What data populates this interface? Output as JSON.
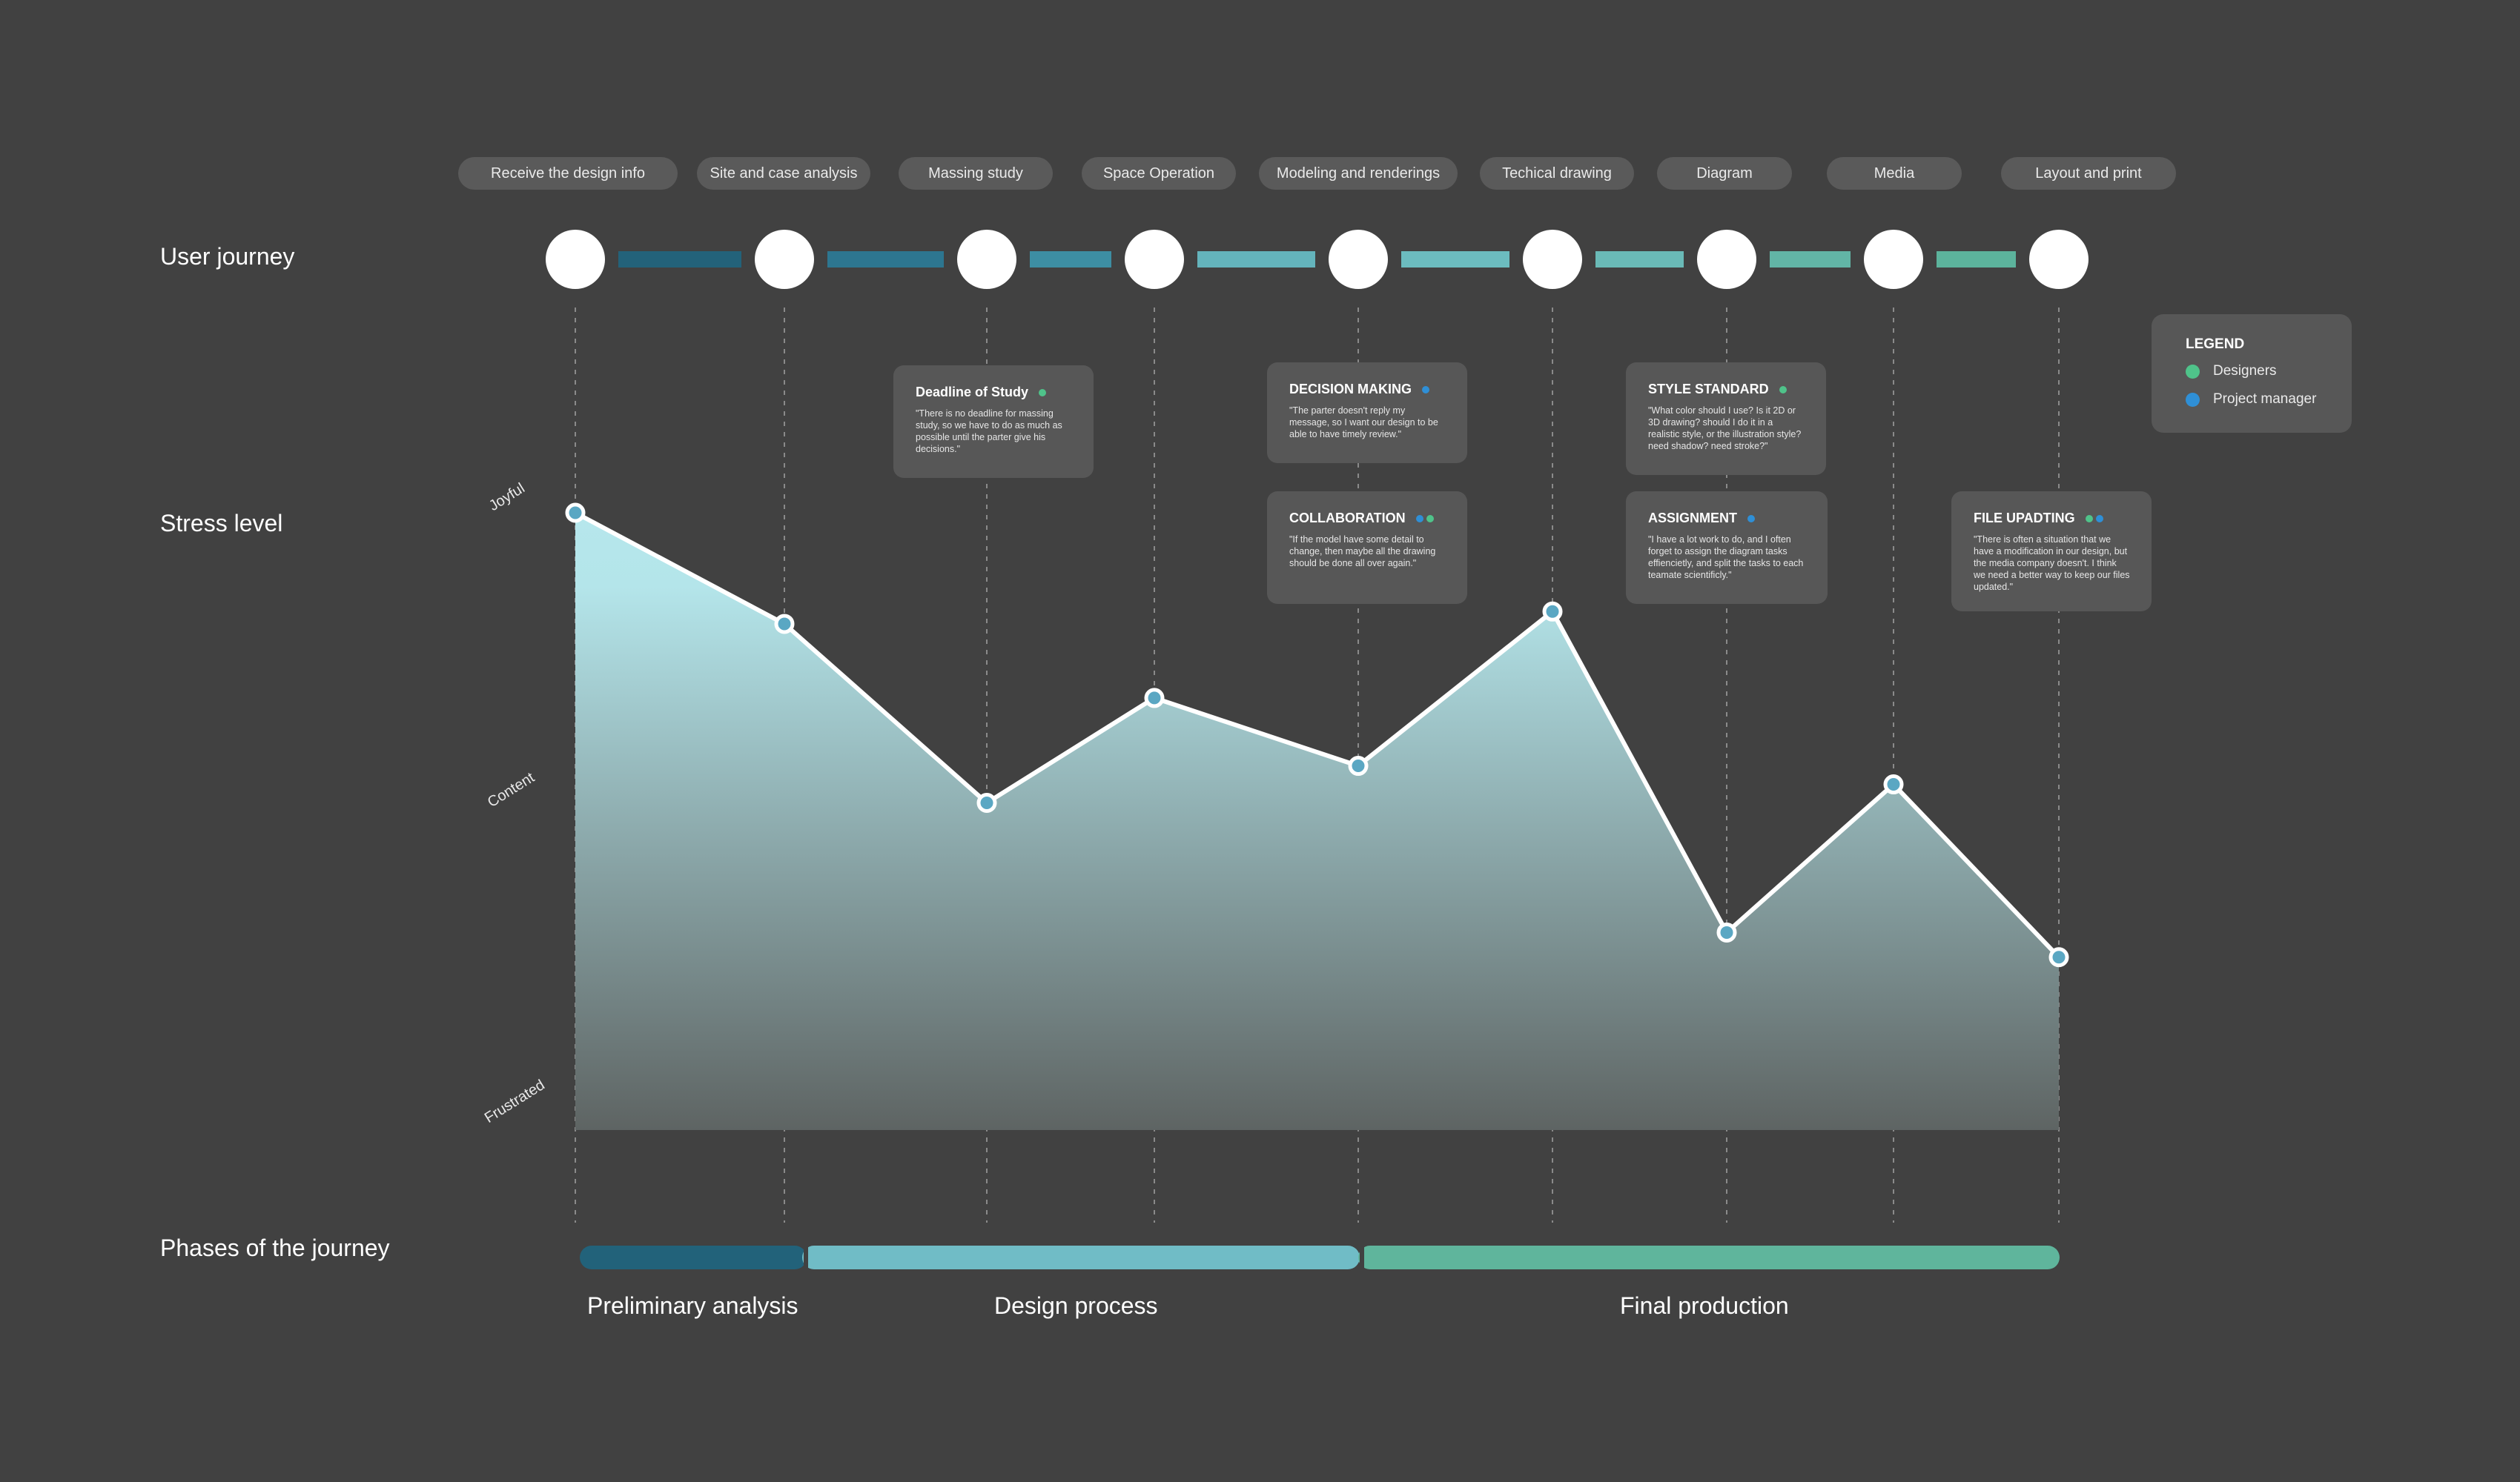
{
  "sections": {
    "user_journey": "User journey",
    "stress_level": "Stress level",
    "phases": "Phases of the journey"
  },
  "stages": [
    "Receive the design info",
    "Site and case analysis",
    "Massing study",
    "Space Operation",
    "Modeling and renderings",
    "Techical drawing",
    "Diagram",
    "Media",
    "Layout and print"
  ],
  "stress_scale": {
    "levels": [
      "Joyful",
      "Content",
      "Frustrated"
    ],
    "stage_values": [
      1.0,
      0.82,
      0.53,
      0.7,
      0.59,
      0.84,
      0.32,
      0.56,
      0.28
    ]
  },
  "connector_colors": [
    "#23627a",
    "#2d7690",
    "#3d8ea3",
    "#64b4bc",
    "#6cbcbf",
    "#6abab7",
    "#62b5a6",
    "#5cb39c"
  ],
  "pain_points": [
    {
      "title": "Deadline of Study",
      "body": "\"There is no deadline for massing study, so we have to do as much as possible until the parter give his decisions.\"",
      "roles": [
        "designers"
      ]
    },
    {
      "title": "DECISION MAKING",
      "body": "\"The parter doesn't reply my message, so I want our design to be able to have timely review.\"",
      "roles": [
        "project_manager"
      ]
    },
    {
      "title": "COLLABORATION",
      "body": "\"If the model have some detail to change, then maybe all the drawing should be done all over again.\"",
      "roles": [
        "project_manager",
        "designers"
      ]
    },
    {
      "title": "STYLE STANDARD",
      "body": "\"What color should I use? Is it 2D or 3D drawing? should I do it in a realistic style, or the illustration style? need shadow? need stroke?\"",
      "roles": [
        "designers"
      ]
    },
    {
      "title": "ASSIGNMENT",
      "body": "\"I have a lot work to do, and I often forget to assign the diagram tasks effiencietly, and split the tasks to each teamate scientificly.\"",
      "roles": [
        "project_manager"
      ]
    },
    {
      "title": "FILE UPADTING",
      "body": "\"There is often a situation that we have a modification in our design, but the media company doesn't. I think we need a better way to keep our files updated.\"",
      "roles": [
        "designers",
        "project_manager"
      ]
    }
  ],
  "legend": {
    "title": "LEGEND",
    "items": [
      {
        "key": "designers",
        "label": "Designers",
        "color": "#4fc38a"
      },
      {
        "key": "project_manager",
        "label": "Project manager",
        "color": "#2f8fd6"
      }
    ]
  },
  "phases": [
    {
      "label": "Preliminary analysis",
      "color": "#22627a"
    },
    {
      "label": "Design process",
      "color": "#70bcc6"
    },
    {
      "label": "Final production",
      "color": "#5fb59c"
    }
  ],
  "colors": {
    "background": "#414141",
    "card": "#575757",
    "area_top": "#b6e7ec",
    "area_bottom": "#5e6463",
    "marker": "#5aa7c3"
  }
}
